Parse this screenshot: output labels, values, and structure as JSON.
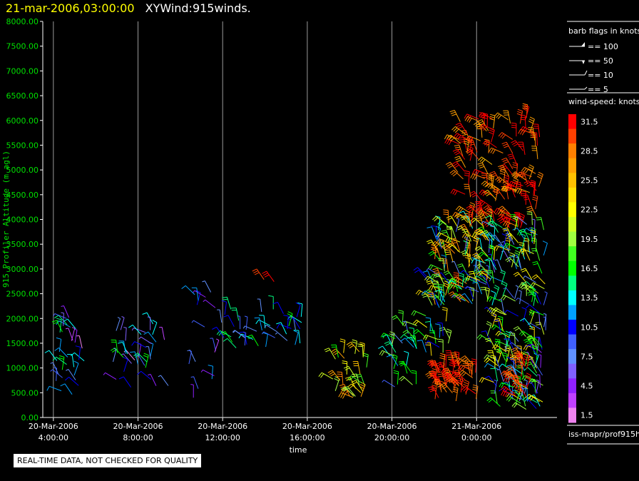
{
  "header": {
    "date": "21-mar-2006,03:00:00",
    "name": "XYWind:915winds."
  },
  "notice": "REAL-TIME DATA, NOT CHECKED FOR QUALITY",
  "chart_data": {
    "type": "scatter",
    "subtype": "wind-barb",
    "ylabel": "915 Profiler Altitude (m agl)",
    "xlabel": "time",
    "ylim": [
      0,
      8000
    ],
    "xlim": [
      3.5,
      27.8
    ],
    "y_ticks": [
      "0.00",
      "500.00",
      "1000.00",
      "1500.00",
      "2000.00",
      "2500.00",
      "3000.00",
      "3500.00",
      "4000.00",
      "4500.00",
      "5000.00",
      "5500.00",
      "6000.00",
      "6500.00",
      "7000.00",
      "7500.00",
      "8000.00"
    ],
    "x_ticks": [
      {
        "t": 4,
        "l1": "20-Mar-2006",
        "l2": "4:00:00"
      },
      {
        "t": 8,
        "l1": "20-Mar-2006",
        "l2": "8:00:00"
      },
      {
        "t": 12,
        "l1": "20-Mar-2006",
        "l2": "12:00:00"
      },
      {
        "t": 16,
        "l1": "20-Mar-2006",
        "l2": "16:00:00"
      },
      {
        "t": 20,
        "l1": "20-Mar-2006",
        "l2": "20:00:00"
      },
      {
        "t": 24,
        "l1": "21-Mar-2006",
        "l2": "0:00:00"
      }
    ],
    "grid": "vertical",
    "barb_legend": {
      "title": "barb flags in knots",
      "entries": [
        "== 100",
        "== 50",
        "== 10",
        "== 5"
      ]
    },
    "speed_legend": {
      "title": "wind-speed: knots",
      "levels": [
        {
          "label": "31.5",
          "color": "#ff0000"
        },
        {
          "label": "",
          "color": "#ff4000"
        },
        {
          "label": "28.5",
          "color": "#ff8000"
        },
        {
          "label": "",
          "color": "#ffa000"
        },
        {
          "label": "25.5",
          "color": "#ffc000"
        },
        {
          "label": "",
          "color": "#ffe000"
        },
        {
          "label": "22.5",
          "color": "#ffff00"
        },
        {
          "label": "",
          "color": "#d0ff20"
        },
        {
          "label": "19.5",
          "color": "#a0ff40"
        },
        {
          "label": "",
          "color": "#40ff20"
        },
        {
          "label": "16.5",
          "color": "#00ff00"
        },
        {
          "label": "",
          "color": "#00ff80"
        },
        {
          "label": "13.5",
          "color": "#00ffff"
        },
        {
          "label": "",
          "color": "#00a0ff"
        },
        {
          "label": "10.5",
          "color": "#0000ff"
        },
        {
          "label": "",
          "color": "#4060ff"
        },
        {
          "label": "7.5",
          "color": "#6090ff"
        },
        {
          "label": "",
          "color": "#8060ff"
        },
        {
          "label": "4.5",
          "color": "#9020ff"
        },
        {
          "label": "",
          "color": "#c040ff"
        },
        {
          "label": "1.5",
          "color": "#ee82ee"
        }
      ]
    },
    "footer_label": "iss-mapr/prof915h",
    "clusters": [
      {
        "t0": 4.0,
        "t1": 5.5,
        "h0": 300,
        "h1": 2100,
        "s0": 2,
        "s1": 17,
        "n": 28
      },
      {
        "t0": 6.7,
        "t1": 9.5,
        "h0": 600,
        "h1": 1900,
        "s0": 2,
        "s1": 17,
        "n": 32
      },
      {
        "t0": 10.3,
        "t1": 12.0,
        "h0": 300,
        "h1": 2700,
        "s0": 2,
        "s1": 14,
        "n": 16
      },
      {
        "t0": 12.0,
        "t1": 15.8,
        "h0": 1400,
        "h1": 2200,
        "s0": 7,
        "s1": 17,
        "n": 38
      },
      {
        "t0": 13.8,
        "t1": 14.5,
        "h0": 2700,
        "h1": 2900,
        "s0": 30,
        "s1": 33,
        "n": 2
      },
      {
        "t0": 17.2,
        "t1": 19.0,
        "h0": 400,
        "h1": 1400,
        "s0": 15,
        "s1": 29,
        "n": 28
      },
      {
        "t0": 19.8,
        "t1": 21.2,
        "h0": 500,
        "h1": 1900,
        "s0": 8,
        "s1": 20,
        "n": 26
      },
      {
        "t0": 21.6,
        "t1": 22.8,
        "h0": 1200,
        "h1": 3000,
        "s0": 10,
        "s1": 25,
        "n": 30
      },
      {
        "t0": 22.0,
        "t1": 24.7,
        "h0": 2200,
        "h1": 4000,
        "s0": 8,
        "s1": 30,
        "n": 110
      },
      {
        "t0": 23.0,
        "t1": 27.0,
        "h0": 3800,
        "h1": 6100,
        "s0": 26,
        "s1": 34,
        "n": 130
      },
      {
        "t0": 22.0,
        "t1": 24.0,
        "h0": 300,
        "h1": 1100,
        "s0": 28,
        "s1": 33,
        "n": 55
      },
      {
        "t0": 24.5,
        "t1": 27.3,
        "h0": 1500,
        "h1": 3900,
        "s0": 6,
        "s1": 24,
        "n": 120
      },
      {
        "t0": 24.8,
        "t1": 27.2,
        "h0": 100,
        "h1": 1500,
        "s0": 4,
        "s1": 24,
        "n": 90
      },
      {
        "t0": 25.8,
        "t1": 26.4,
        "h0": 400,
        "h1": 1200,
        "s0": 28,
        "s1": 33,
        "n": 20
      }
    ]
  }
}
